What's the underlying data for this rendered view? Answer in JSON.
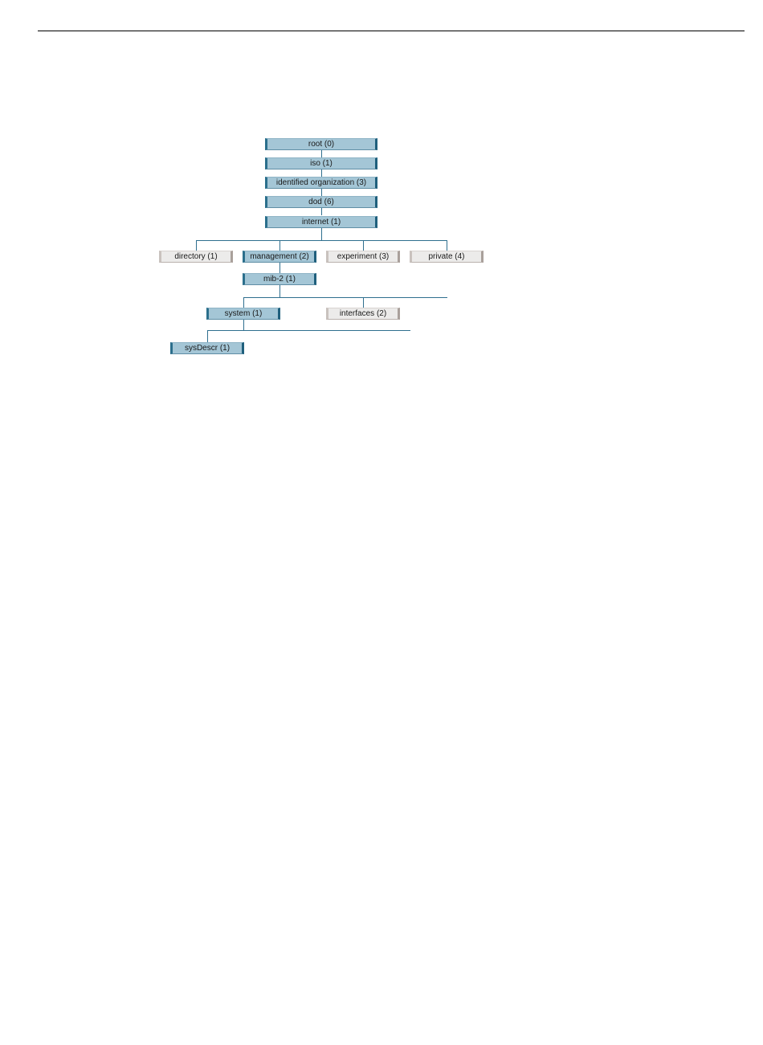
{
  "colors": {
    "active_fill": "#a4c6d6",
    "inactive_fill": "#ecebea",
    "connector": "#2f6f8f",
    "rule": "#000000"
  },
  "tree": {
    "nodes": [
      {
        "id": "root",
        "label": "root (0)",
        "state": "active"
      },
      {
        "id": "iso",
        "label": "iso (1)",
        "state": "active"
      },
      {
        "id": "identified-organization",
        "label": "identified organization (3)",
        "state": "active"
      },
      {
        "id": "dod",
        "label": "dod (6)",
        "state": "active"
      },
      {
        "id": "internet",
        "label": "internet (1)",
        "state": "active"
      },
      {
        "id": "directory",
        "label": "directory (1)",
        "state": "inactive"
      },
      {
        "id": "management",
        "label": "management (2)",
        "state": "active"
      },
      {
        "id": "experiment",
        "label": "experiment (3)",
        "state": "inactive"
      },
      {
        "id": "private",
        "label": "private (4)",
        "state": "inactive"
      },
      {
        "id": "mib-2",
        "label": "mib-2 (1)",
        "state": "active"
      },
      {
        "id": "system",
        "label": "system (1)",
        "state": "active"
      },
      {
        "id": "interfaces",
        "label": "interfaces (2)",
        "state": "inactive"
      },
      {
        "id": "sysdescr",
        "label": "sysDescr (1)",
        "state": "active"
      }
    ]
  }
}
